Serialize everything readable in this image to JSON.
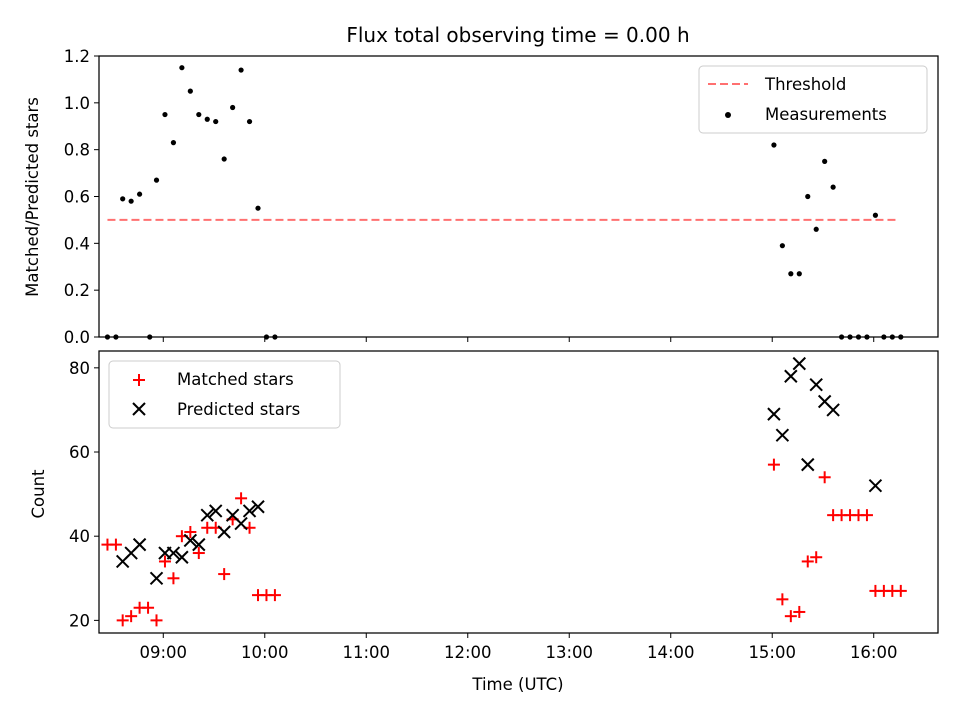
{
  "chart_data": [
    {
      "type": "scatter",
      "title": "Flux total observing time = 0.00 h",
      "xlabel": "",
      "ylabel": "Matched/Predicted stars",
      "xlim": [
        "08:22",
        "16:38"
      ],
      "ylim": [
        0,
        1.2
      ],
      "yticks": [
        "0.0",
        "0.2",
        "0.4",
        "0.6",
        "0.8",
        "1.0",
        "1.2"
      ],
      "xticks": [
        "09:00",
        "10:00",
        "11:00",
        "12:00",
        "13:00",
        "14:00",
        "15:00",
        "16:00"
      ],
      "show_xtick_labels": false,
      "grid": false,
      "legend_position": "upper right",
      "threshold": {
        "name": "Threshold",
        "value": 0.5,
        "x_range": [
          "08:27",
          "16:13"
        ],
        "color": "#ff7070",
        "style": "dashed"
      },
      "series": [
        {
          "name": "Measurements",
          "marker": "dot",
          "color": "#000000",
          "points": [
            [
              "08:27",
              0.0
            ],
            [
              "08:32",
              0.0
            ],
            [
              "08:36",
              0.59
            ],
            [
              "08:41",
              0.58
            ],
            [
              "08:46",
              0.61
            ],
            [
              "08:52",
              0.0
            ],
            [
              "08:56",
              0.67
            ],
            [
              "09:01",
              0.95
            ],
            [
              "09:06",
              0.83
            ],
            [
              "09:11",
              1.15
            ],
            [
              "09:16",
              1.05
            ],
            [
              "09:21",
              0.95
            ],
            [
              "09:26",
              0.93
            ],
            [
              "09:31",
              0.92
            ],
            [
              "09:36",
              0.76
            ],
            [
              "09:41",
              0.98
            ],
            [
              "09:46",
              1.14
            ],
            [
              "09:51",
              0.92
            ],
            [
              "09:56",
              0.55
            ],
            [
              "10:01",
              0.0
            ],
            [
              "10:06",
              0.0
            ],
            [
              "15:01",
              0.82
            ],
            [
              "15:06",
              0.39
            ],
            [
              "15:11",
              0.27
            ],
            [
              "15:16",
              0.27
            ],
            [
              "15:21",
              0.6
            ],
            [
              "15:26",
              0.46
            ],
            [
              "15:31",
              0.75
            ],
            [
              "15:36",
              0.64
            ],
            [
              "15:41",
              0.0
            ],
            [
              "15:46",
              0.0
            ],
            [
              "15:51",
              0.0
            ],
            [
              "15:56",
              0.0
            ],
            [
              "16:01",
              0.52
            ],
            [
              "16:06",
              0.0
            ],
            [
              "16:11",
              0.0
            ],
            [
              "16:16",
              0.0
            ]
          ]
        }
      ]
    },
    {
      "type": "scatter",
      "title": "",
      "xlabel": "Time (UTC)",
      "ylabel": "Count",
      "xlim": [
        "08:22",
        "16:38"
      ],
      "ylim": [
        17,
        84
      ],
      "yticks": [
        "20",
        "40",
        "60",
        "80"
      ],
      "xticks": [
        "09:00",
        "10:00",
        "11:00",
        "12:00",
        "13:00",
        "14:00",
        "15:00",
        "16:00"
      ],
      "grid": false,
      "legend_position": "upper left",
      "series": [
        {
          "name": "Matched stars",
          "marker": "plus",
          "color": "#ff0000",
          "points": [
            [
              "08:27",
              38
            ],
            [
              "08:32",
              38
            ],
            [
              "08:36",
              20
            ],
            [
              "08:41",
              21
            ],
            [
              "08:46",
              23
            ],
            [
              "08:51",
              23
            ],
            [
              "08:56",
              20
            ],
            [
              "09:01",
              34
            ],
            [
              "09:06",
              30
            ],
            [
              "09:11",
              40
            ],
            [
              "09:16",
              41
            ],
            [
              "09:21",
              36
            ],
            [
              "09:26",
              42
            ],
            [
              "09:31",
              42
            ],
            [
              "09:36",
              31
            ],
            [
              "09:41",
              44
            ],
            [
              "09:46",
              49
            ],
            [
              "09:51",
              42
            ],
            [
              "09:56",
              26
            ],
            [
              "10:01",
              26
            ],
            [
              "10:06",
              26
            ],
            [
              "15:01",
              57
            ],
            [
              "15:06",
              25
            ],
            [
              "15:11",
              21
            ],
            [
              "15:16",
              22
            ],
            [
              "15:21",
              34
            ],
            [
              "15:26",
              35
            ],
            [
              "15:31",
              54
            ],
            [
              "15:36",
              45
            ],
            [
              "15:41",
              45
            ],
            [
              "15:46",
              45
            ],
            [
              "15:51",
              45
            ],
            [
              "15:56",
              45
            ],
            [
              "16:01",
              27
            ],
            [
              "16:06",
              27
            ],
            [
              "16:11",
              27
            ],
            [
              "16:16",
              27
            ]
          ]
        },
        {
          "name": "Predicted stars",
          "marker": "x",
          "color": "#000000",
          "points": [
            [
              "08:36",
              34
            ],
            [
              "08:41",
              36
            ],
            [
              "08:46",
              38
            ],
            [
              "08:56",
              30
            ],
            [
              "09:01",
              36
            ],
            [
              "09:06",
              36
            ],
            [
              "09:11",
              35
            ],
            [
              "09:16",
              39
            ],
            [
              "09:21",
              38
            ],
            [
              "09:26",
              45
            ],
            [
              "09:31",
              46
            ],
            [
              "09:36",
              41
            ],
            [
              "09:41",
              45
            ],
            [
              "09:46",
              43
            ],
            [
              "09:51",
              46
            ],
            [
              "09:56",
              47
            ],
            [
              "15:01",
              69
            ],
            [
              "15:06",
              64
            ],
            [
              "15:11",
              78
            ],
            [
              "15:16",
              81
            ],
            [
              "15:21",
              57
            ],
            [
              "15:26",
              76
            ],
            [
              "15:31",
              72
            ],
            [
              "15:36",
              70
            ],
            [
              "16:01",
              52
            ]
          ]
        }
      ]
    }
  ]
}
